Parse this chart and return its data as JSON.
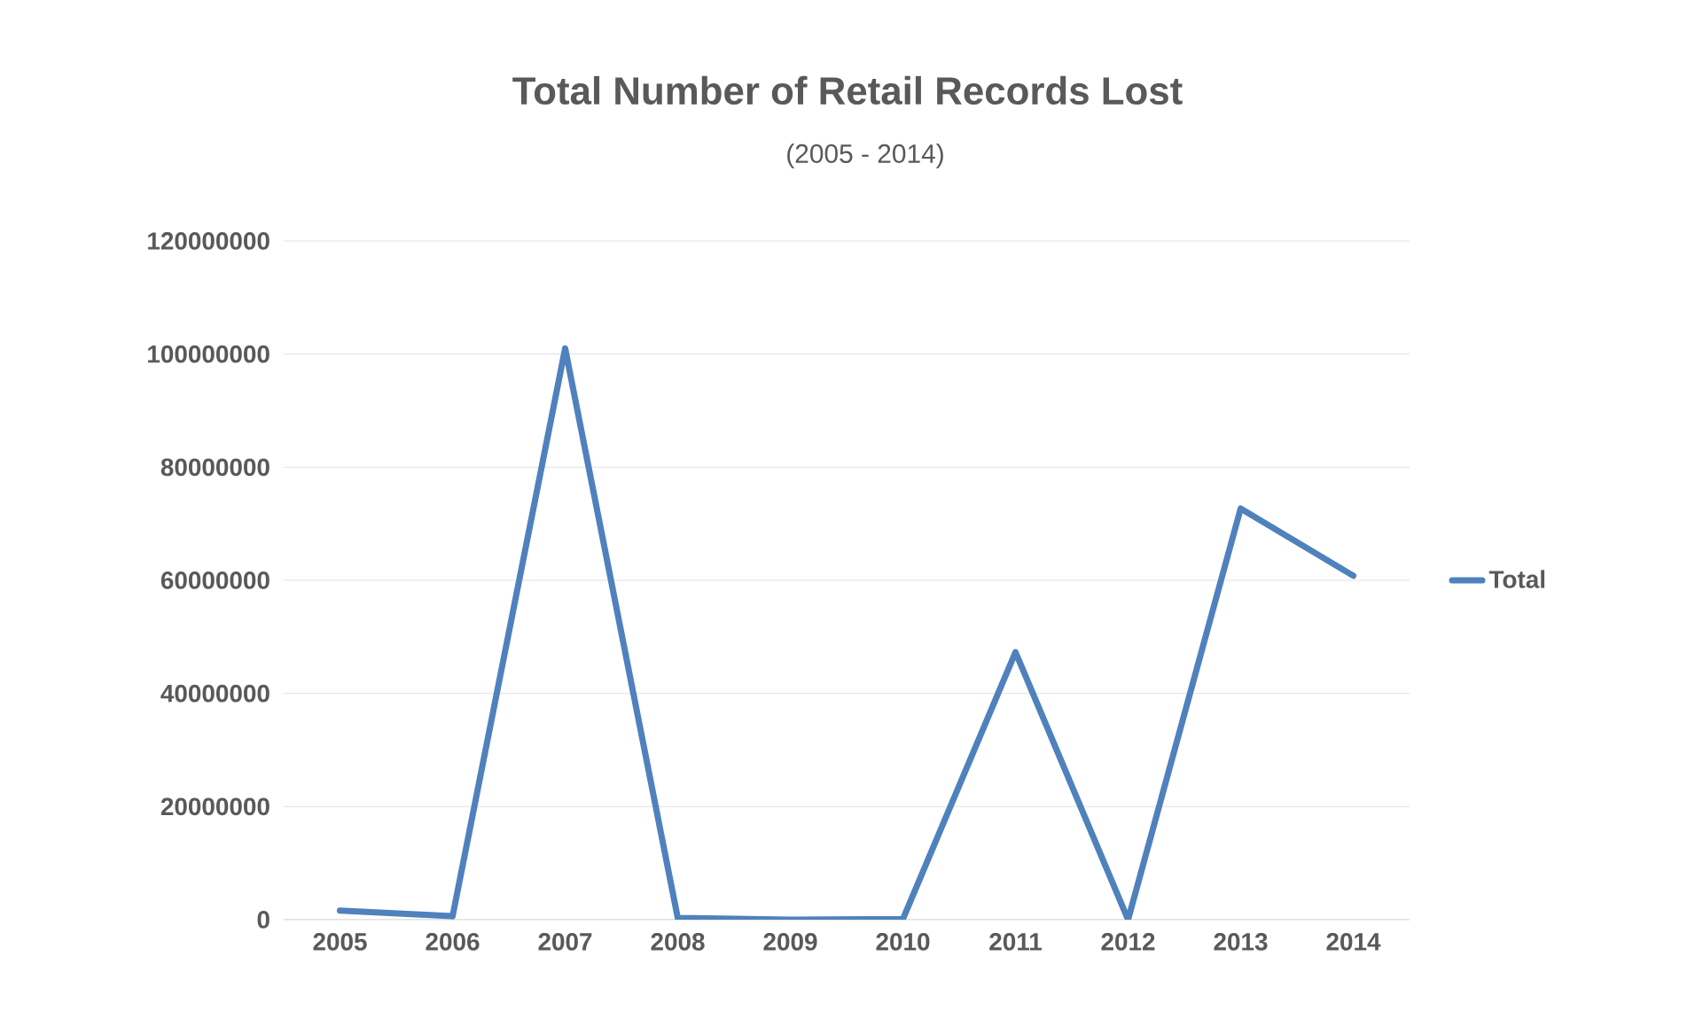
{
  "chart_data": {
    "type": "line",
    "title": "Total Number of Retail Records Lost",
    "subtitle": "(2005 - 2014)",
    "categories": [
      "2005",
      "2006",
      "2007",
      "2008",
      "2009",
      "2010",
      "2011",
      "2012",
      "2013",
      "2014"
    ],
    "series": [
      {
        "name": "Total",
        "color": "#4f81bd",
        "values": [
          1600000,
          600000,
          101000000,
          300000,
          0,
          100000,
          47300000,
          0,
          72700000,
          60800000
        ]
      }
    ],
    "ylim": [
      0,
      120000000
    ],
    "yticks": [
      0,
      20000000,
      40000000,
      60000000,
      80000000,
      100000000,
      120000000
    ],
    "grid": "y",
    "legend": "right",
    "marker": "none"
  }
}
